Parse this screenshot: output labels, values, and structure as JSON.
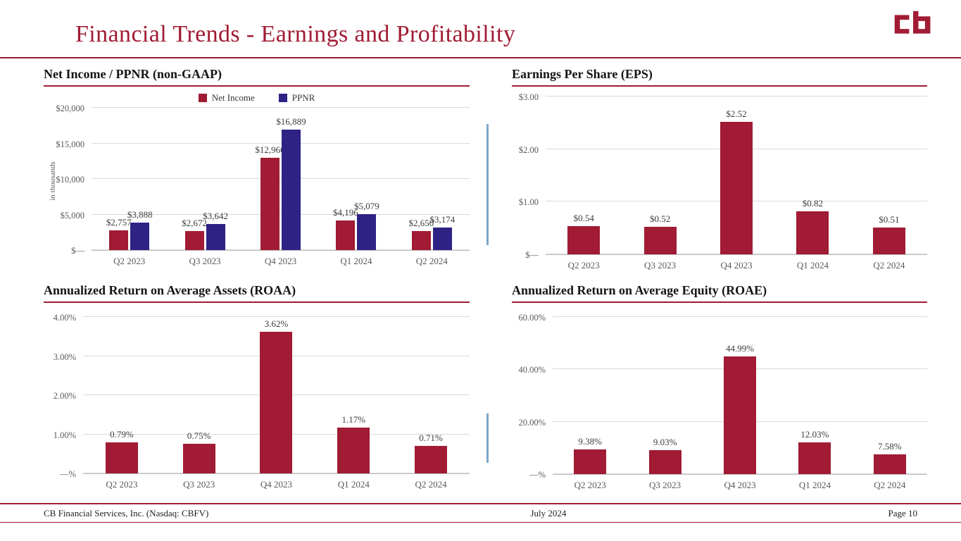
{
  "header": {
    "title": "Financial Trends - Earnings and Profitability",
    "logo_text": "cb"
  },
  "footer": {
    "left": "CB Financial Services, Inc. (Nasdaq: CBFV)",
    "center": "July 2024",
    "right": "Page 10"
  },
  "colors": {
    "accent_red": "#A01B33",
    "ppnr_purple": "#2E2285",
    "separator_blue": "#7DA6CB",
    "gridline": "#D9D9D9",
    "axis_text": "#595959"
  },
  "chart_data": [
    {
      "type": "bar",
      "title": "Net Income / PPNR (non-GAAP)",
      "ylabel": "in thousands",
      "legend_position": "top",
      "grid": true,
      "categories": [
        "Q2 2023",
        "Q3 2023",
        "Q4 2023",
        "Q1 2024",
        "Q2 2024"
      ],
      "series": [
        {
          "name": "Net Income",
          "color_key": "accent_red",
          "values": [
            2757,
            2672,
            12966,
            4196,
            2650
          ],
          "labels": [
            "$2,757",
            "$2,672",
            "$12,966",
            "$4,196",
            "$2,650"
          ]
        },
        {
          "name": "PPNR",
          "color_key": "ppnr_purple",
          "values": [
            3888,
            3642,
            16889,
            5079,
            3174
          ],
          "labels": [
            "$3,888",
            "$3,642",
            "$16,889",
            "$5,079",
            "$3,174"
          ]
        }
      ],
      "ylim": [
        0,
        20000
      ],
      "yticks": [
        {
          "value": 0,
          "label": "$—"
        },
        {
          "value": 5000,
          "label": "$5,000"
        },
        {
          "value": 10000,
          "label": "$10,000"
        },
        {
          "value": 15000,
          "label": "$15,000"
        },
        {
          "value": 20000,
          "label": "$20,000"
        }
      ]
    },
    {
      "type": "bar",
      "title": "Earnings Per Share (EPS)",
      "grid": true,
      "categories": [
        "Q2 2023",
        "Q3 2023",
        "Q4 2023",
        "Q1 2024",
        "Q2 2024"
      ],
      "bar_color_key": "accent_red",
      "values": [
        0.54,
        0.52,
        2.52,
        0.82,
        0.51
      ],
      "labels": [
        "$0.54",
        "$0.52",
        "$2.52",
        "$0.82",
        "$0.51"
      ],
      "ylim": [
        0,
        3
      ],
      "yticks": [
        {
          "value": 0,
          "label": "$—"
        },
        {
          "value": 1,
          "label": "$1.00"
        },
        {
          "value": 2,
          "label": "$2.00"
        },
        {
          "value": 3,
          "label": "$3.00"
        }
      ]
    },
    {
      "type": "bar",
      "title": "Annualized Return on Average Assets (ROAA)",
      "grid": true,
      "categories": [
        "Q2 2023",
        "Q3 2023",
        "Q4 2023",
        "Q1 2024",
        "Q2 2024"
      ],
      "bar_color_key": "accent_red",
      "values": [
        0.79,
        0.75,
        3.62,
        1.17,
        0.71
      ],
      "labels": [
        "0.79%",
        "0.75%",
        "3.62%",
        "1.17%",
        "0.71%"
      ],
      "ylim": [
        0,
        4
      ],
      "yticks": [
        {
          "value": 0,
          "label": "—%"
        },
        {
          "value": 1,
          "label": "1.00%"
        },
        {
          "value": 2,
          "label": "2.00%"
        },
        {
          "value": 3,
          "label": "3.00%"
        },
        {
          "value": 4,
          "label": "4.00%"
        }
      ]
    },
    {
      "type": "bar",
      "title": "Annualized Return on Average Equity (ROAE)",
      "grid": true,
      "categories": [
        "Q2 2023",
        "Q3 2023",
        "Q4 2023",
        "Q1 2024",
        "Q2 2024"
      ],
      "bar_color_key": "accent_red",
      "values": [
        9.38,
        9.03,
        44.99,
        12.03,
        7.58
      ],
      "labels": [
        "9.38%",
        "9.03%",
        "44.99%",
        "12.03%",
        "7.58%"
      ],
      "ylim": [
        0,
        60
      ],
      "yticks": [
        {
          "value": 0,
          "label": "—%"
        },
        {
          "value": 20,
          "label": "20.00%"
        },
        {
          "value": 40,
          "label": "40.00%"
        },
        {
          "value": 60,
          "label": "60.00%"
        }
      ]
    }
  ]
}
